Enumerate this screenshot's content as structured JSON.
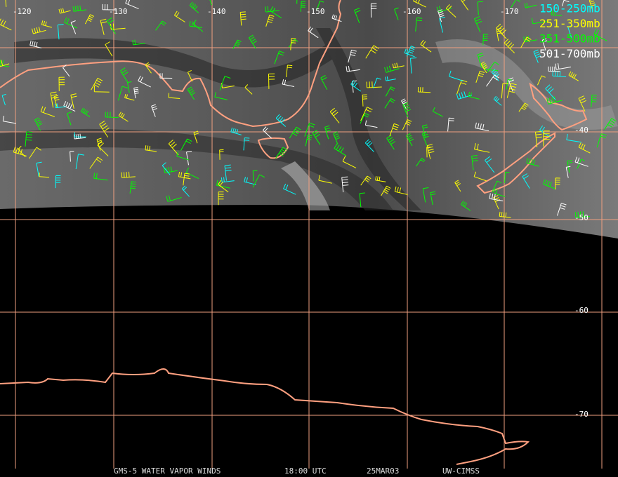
{
  "map": {
    "longitude_labels": [
      "-120",
      "-130",
      "-140",
      "-150",
      "-160",
      "-170"
    ],
    "latitude_labels": [
      "-40",
      "-50",
      "-60",
      "-70"
    ],
    "legend": [
      {
        "label": "150-250mb",
        "color": "#00ffff"
      },
      {
        "label": "251-350mb",
        "color": "#ffff00"
      },
      {
        "label": "351-500mb",
        "color": "#00ff00"
      },
      {
        "label": "501-700mb",
        "color": "#ffffff"
      }
    ],
    "grid_color": "#f0a080",
    "coast_color": "#ffa080",
    "footer": [
      "GMS-5 WATER VAPOR WINDS",
      "18:00 UTC",
      "25MAR03",
      "UW-CIMSS"
    ]
  }
}
